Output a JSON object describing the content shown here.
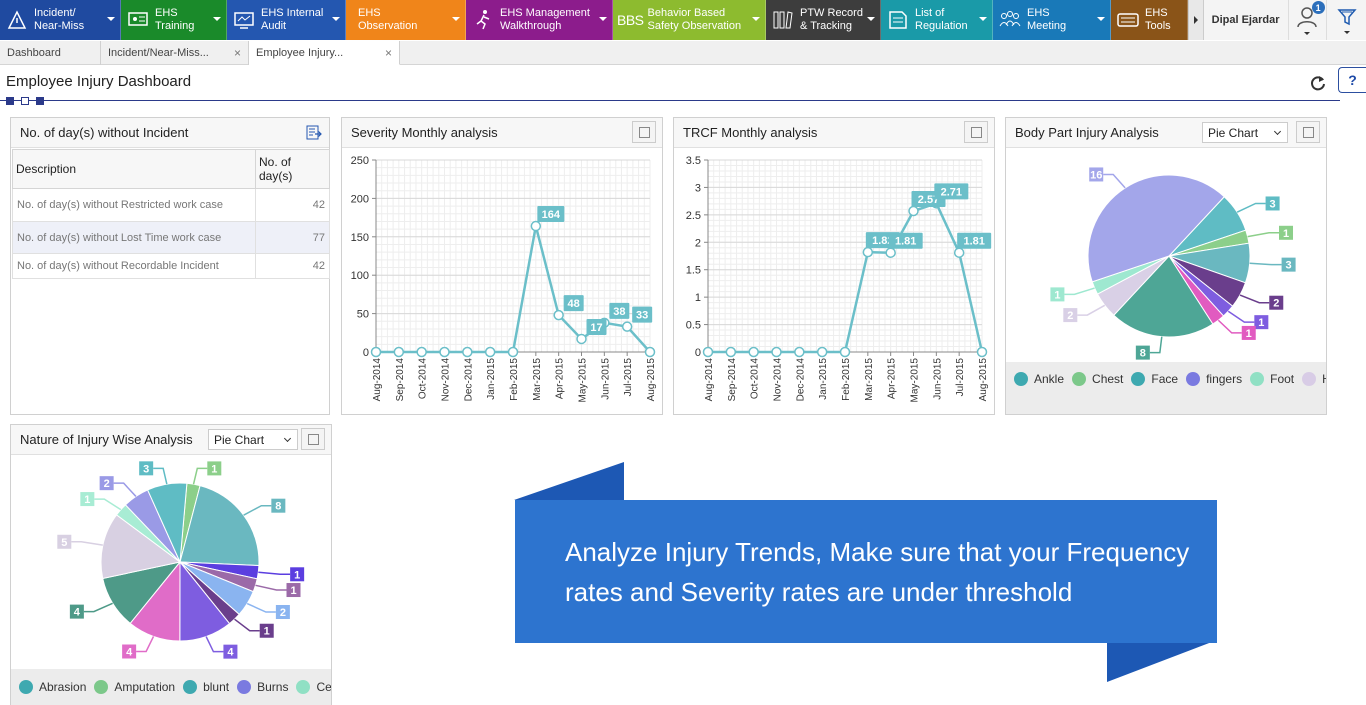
{
  "nav": {
    "modules": [
      {
        "label": "Incident/\nNear-Miss",
        "color": "#1f4aa0",
        "icon": "incident-icon"
      },
      {
        "label": "EHS\nTraining",
        "color": "#1a8a2a",
        "icon": "training-icon"
      },
      {
        "label": "EHS Internal\nAudit",
        "color": "#2457b0",
        "icon": "audit-icon"
      },
      {
        "label": "EHS\nObservation",
        "color": "#f0851a",
        "icon": "observation-icon"
      },
      {
        "label": "EHS Management\nWalkthrough",
        "color": "#8c1c8c",
        "icon": "walkthrough-icon"
      },
      {
        "label": "Behavior Based\nSafety Observation",
        "color": "#8dbb2f",
        "icon": "bbs-icon",
        "abbr": "BBS"
      },
      {
        "label": "PTW Record\n& Tracking",
        "color": "#3d3d3d",
        "icon": "ptw-icon"
      },
      {
        "label": "List of\nRegulation",
        "color": "#1a9aa8",
        "icon": "regulation-icon"
      },
      {
        "label": "EHS\nMeeting",
        "color": "#1979b8",
        "icon": "meeting-icon"
      },
      {
        "label": "EHS\nTools",
        "color": "#8a5418",
        "icon": "tools-icon"
      }
    ],
    "user_name": "Dipal Ejardar",
    "notification_count": "1"
  },
  "tabs": [
    {
      "label": "Dashboard",
      "closable": false
    },
    {
      "label": "Incident/Near-Miss...",
      "closable": true
    },
    {
      "label": "Employee Injury...",
      "closable": true
    }
  ],
  "page": {
    "title": "Employee Injury Dashboard",
    "help_label": "?"
  },
  "days_panel": {
    "title": "No. of day(s) without Incident",
    "columns": [
      "Description",
      "No. of day(s)"
    ],
    "rows": [
      {
        "desc": "No. of day(s) without Restricted work case",
        "value": "42"
      },
      {
        "desc": "No. of day(s) without Lost Time work case",
        "value": "77"
      },
      {
        "desc": "No. of day(s) without Recordable Incident",
        "value": "42"
      }
    ]
  },
  "severity_panel": {
    "title": "Severity Monthly analysis"
  },
  "trcf_panel": {
    "title": "TRCF Monthly analysis"
  },
  "body_panel": {
    "title": "Body Part Injury Analysis",
    "select_value": "Pie Chart"
  },
  "nature_panel": {
    "title": "Nature of Injury Wise Analysis",
    "select_value": "Pie Chart"
  },
  "banner": {
    "line1": "Analyze Injury Trends, Make sure that your Frequency",
    "line2": "rates and Severity rates are under threshold"
  },
  "chart_data": [
    {
      "type": "line",
      "title": "Severity Monthly analysis",
      "categories": [
        "Aug-2014",
        "Sep-2014",
        "Oct-2014",
        "Nov-2014",
        "Dec-2014",
        "Jan-2015",
        "Feb-2015",
        "Mar-2015",
        "Apr-2015",
        "May-2015",
        "Jun-2015",
        "Jul-2015",
        "Aug-2015"
      ],
      "values": [
        0,
        0,
        0,
        0,
        0,
        0,
        0,
        164,
        48,
        17,
        38,
        33,
        0
      ],
      "data_labels": [
        "",
        "",
        "",
        "",
        "",
        "",
        "",
        "164",
        "48",
        "17",
        "38",
        "33",
        ""
      ],
      "ylim": [
        0,
        250
      ],
      "yticks": [
        0,
        50,
        100,
        150,
        200,
        250
      ],
      "color": "#6bbfc9",
      "grid": true
    },
    {
      "type": "line",
      "title": "TRCF Monthly analysis",
      "categories": [
        "Aug-2014",
        "Sep-2014",
        "Oct-2014",
        "Nov-2014",
        "Dec-2014",
        "Jan-2015",
        "Feb-2015",
        "Mar-2015",
        "Apr-2015",
        "May-2015",
        "Jun-2015",
        "Jul-2015",
        "Aug-2015"
      ],
      "values": [
        0,
        0,
        0,
        0,
        0,
        0,
        0,
        1.82,
        1.81,
        2.57,
        2.71,
        1.81,
        0
      ],
      "data_labels": [
        "",
        "",
        "",
        "",
        "",
        "",
        "",
        "1.82",
        "1.81",
        "2.57",
        "2.71",
        "1.81",
        ""
      ],
      "ylim": [
        0,
        3.5
      ],
      "yticks": [
        "0",
        "0.5",
        "1",
        "1.5",
        "2",
        "2.5",
        "3",
        "3.5"
      ],
      "color": "#6bbfc9",
      "grid": true
    },
    {
      "type": "pie",
      "title": "Body Part Injury Analysis",
      "slices": [
        {
          "value": 3,
          "color": "#5fbcc4"
        },
        {
          "value": 1,
          "color": "#8ccf8a"
        },
        {
          "value": 3,
          "color": "#6ab8c0"
        },
        {
          "value": 2,
          "color": "#6a3e8c"
        },
        {
          "value": 1,
          "color": "#7e5de0"
        },
        {
          "value": 1,
          "color": "#e15bc0"
        },
        {
          "value": 8,
          "color": "#4ea696"
        },
        {
          "value": 2,
          "color": "#d9d0e6"
        },
        {
          "value": 1,
          "color": "#9ee8d0"
        },
        {
          "value": 16,
          "color": "#a3a6ea"
        }
      ],
      "legend": [
        {
          "name": "Ankle",
          "color": "#3ea9b0"
        },
        {
          "name": "Chest",
          "color": "#7cc88a"
        },
        {
          "name": "Face",
          "color": "#3ea9b0"
        },
        {
          "name": "fingers",
          "color": "#7a7ae0"
        },
        {
          "name": "Foot",
          "color": "#90e0c4"
        },
        {
          "name": "He",
          "color": "#d8cce6"
        }
      ]
    },
    {
      "type": "pie",
      "title": "Nature of Injury Wise Analysis",
      "slices": [
        {
          "value": 1,
          "color": "#8ccf8a"
        },
        {
          "value": 8,
          "color": "#6ab8c0"
        },
        {
          "value": 1,
          "color": "#5b3ee0"
        },
        {
          "value": 1,
          "color": "#9b6aa8"
        },
        {
          "value": 2,
          "color": "#8ab4f0"
        },
        {
          "value": 1,
          "color": "#6a3e8c"
        },
        {
          "value": 4,
          "color": "#7e5de0"
        },
        {
          "value": 4,
          "color": "#e06cc8"
        },
        {
          "value": 4,
          "color": "#4e9a88"
        },
        {
          "value": 5,
          "color": "#d8d0e2"
        },
        {
          "value": 1,
          "color": "#a8ecd4"
        },
        {
          "value": 2,
          "color": "#9a9ae6"
        },
        {
          "value": 3,
          "color": "#5fbcc4"
        }
      ],
      "legend": [
        {
          "name": "Abrasion",
          "color": "#3ea9b0"
        },
        {
          "name": "Amputation",
          "color": "#7cc88a"
        },
        {
          "name": "blunt",
          "color": "#3ea9b0"
        },
        {
          "name": "Burns",
          "color": "#7a7ae0"
        },
        {
          "name": "Cer",
          "color": "#90e0c4"
        }
      ]
    }
  ]
}
